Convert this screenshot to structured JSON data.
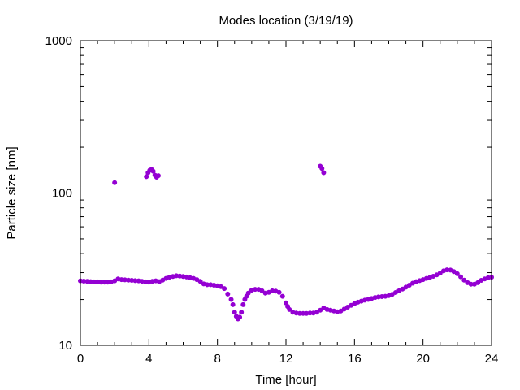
{
  "chart_data": {
    "type": "scatter",
    "title": "Modes location (3/19/19)",
    "xlabel": "Time [hour]",
    "ylabel": "Particle size [nm]",
    "xlim": [
      0,
      24
    ],
    "ylim": [
      10,
      1000
    ],
    "yscale": "log",
    "grid": false,
    "legend": "none",
    "x_ticks": [
      0,
      4,
      8,
      12,
      16,
      20,
      24
    ],
    "x_tick_labels": [
      "0",
      "4",
      "8",
      "12",
      "16",
      "20",
      "24"
    ],
    "y_ticks": [
      10,
      100,
      1000
    ],
    "y_tick_labels": [
      "10",
      "100",
      "1000"
    ],
    "marker_color": "#9400d3",
    "series": [
      {
        "x": [
          0.0,
          0.2,
          0.4,
          0.6,
          0.8,
          1.0,
          1.2,
          1.4,
          1.6,
          1.8,
          2.0,
          2.2,
          2.4,
          2.6,
          2.8,
          3.0,
          3.2,
          3.4,
          3.6,
          3.8,
          4.0,
          4.2,
          4.4,
          4.6,
          4.8,
          5.0,
          5.2,
          5.4,
          5.6,
          5.8,
          6.0,
          6.2,
          6.4,
          6.6,
          6.8,
          7.0,
          7.2,
          7.4,
          7.6,
          7.8,
          8.0,
          8.2,
          8.4,
          8.6,
          8.8,
          8.9,
          9.0,
          9.1,
          9.2,
          9.3,
          9.4,
          9.5,
          9.6,
          9.7,
          9.8,
          10.0,
          10.2,
          10.4,
          10.6,
          10.8,
          11.0,
          11.2,
          11.4,
          11.6,
          11.8,
          12.0,
          12.1,
          12.2,
          12.4,
          12.6,
          12.8,
          13.0,
          13.2,
          13.4,
          13.6,
          13.8,
          14.0,
          14.2,
          14.4,
          14.6,
          14.8,
          15.0,
          15.2,
          15.4,
          15.6,
          15.8,
          16.0,
          16.2,
          16.4,
          16.6,
          16.8,
          17.0,
          17.2,
          17.4,
          17.6,
          17.8,
          18.0,
          18.2,
          18.4,
          18.6,
          18.8,
          19.0,
          19.2,
          19.4,
          19.6,
          19.8,
          20.0,
          20.2,
          20.4,
          20.6,
          20.8,
          21.0,
          21.2,
          21.4,
          21.6,
          21.8,
          22.0,
          22.2,
          22.4,
          22.6,
          22.8,
          23.0,
          23.2,
          23.4,
          23.6,
          23.8,
          24.0
        ],
        "y": [
          26.5,
          26.4,
          26.3,
          26.2,
          26.1,
          26.1,
          26.0,
          26.0,
          26.0,
          26.1,
          26.5,
          27.3,
          27.0,
          26.9,
          26.8,
          26.7,
          26.6,
          26.5,
          26.3,
          26.1,
          26.0,
          26.3,
          26.5,
          26.2,
          26.8,
          27.5,
          28.0,
          28.3,
          28.6,
          28.5,
          28.3,
          28.1,
          27.8,
          27.5,
          27.0,
          26.3,
          25.3,
          25.0,
          25.0,
          24.8,
          24.6,
          24.3,
          23.6,
          21.7,
          20.0,
          18.5,
          16.5,
          15.5,
          14.9,
          15.3,
          16.5,
          18.5,
          20.0,
          21.0,
          22.0,
          23.0,
          23.3,
          23.3,
          22.8,
          22.0,
          22.3,
          22.8,
          22.7,
          22.3,
          21.0,
          19.0,
          18.0,
          17.2,
          16.5,
          16.3,
          16.2,
          16.2,
          16.2,
          16.3,
          16.3,
          16.5,
          17.0,
          17.6,
          17.2,
          17.0,
          16.8,
          16.6,
          16.8,
          17.3,
          17.8,
          18.3,
          18.8,
          19.2,
          19.5,
          19.8,
          20.0,
          20.3,
          20.6,
          20.8,
          20.9,
          21.0,
          21.2,
          21.6,
          22.2,
          22.8,
          23.4,
          24.1,
          24.8,
          25.6,
          26.2,
          26.6,
          27.0,
          27.5,
          27.9,
          28.4,
          29.0,
          29.8,
          30.8,
          31.3,
          31.2,
          30.5,
          29.5,
          28.2,
          26.8,
          25.8,
          25.2,
          25.2,
          25.8,
          26.7,
          27.3,
          27.8,
          28.0
        ]
      },
      {
        "x": [
          2.0,
          3.85,
          3.95,
          4.05,
          4.15,
          4.25,
          4.35,
          4.45,
          4.55,
          14.0,
          14.1,
          14.2
        ],
        "y": [
          117,
          128,
          136,
          141,
          143,
          139,
          131,
          127,
          130,
          150,
          145,
          136
        ]
      }
    ]
  }
}
